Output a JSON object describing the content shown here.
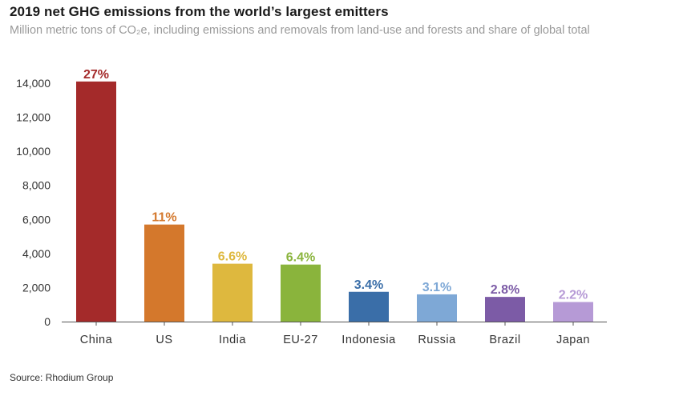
{
  "header": {
    "title": "2019 net GHG emissions from the world’s largest emitters",
    "subtitle": "Million metric tons of CO₂e, including emissions and removals from land-use and forests and share of global total"
  },
  "footer": {
    "source": "Source: Rhodium Group"
  },
  "chart_data": {
    "type": "bar",
    "title": "2019 net GHG emissions from the world’s largest emitters",
    "subtitle": "Million metric tons of CO₂e, including emissions and removals from land-use and forests and share of global total",
    "xlabel": "",
    "ylabel": "",
    "categories": [
      "China",
      "US",
      "India",
      "EU-27",
      "Indonesia",
      "Russia",
      "Brazil",
      "Japan"
    ],
    "values": [
      14100,
      5700,
      3400,
      3350,
      1750,
      1600,
      1450,
      1150
    ],
    "data_labels": [
      "27%",
      "11%",
      "6.6%",
      "6.4%",
      "3.4%",
      "3.1%",
      "2.8%",
      "2.2%"
    ],
    "colors": [
      "#a42a2a",
      "#d4782c",
      "#deb83e",
      "#8ab43c",
      "#3a6ea8",
      "#7ea8d6",
      "#7c5ba6",
      "#b69ad6"
    ],
    "yticks": [
      0,
      2000,
      4000,
      6000,
      8000,
      10000,
      12000,
      14000
    ],
    "ytick_labels": [
      "0",
      "2,000",
      "4,000",
      "6,000",
      "8,000",
      "10,000",
      "12,000",
      "14,000"
    ],
    "ylim": [
      0,
      14500
    ],
    "grid": false,
    "legend": "none"
  }
}
